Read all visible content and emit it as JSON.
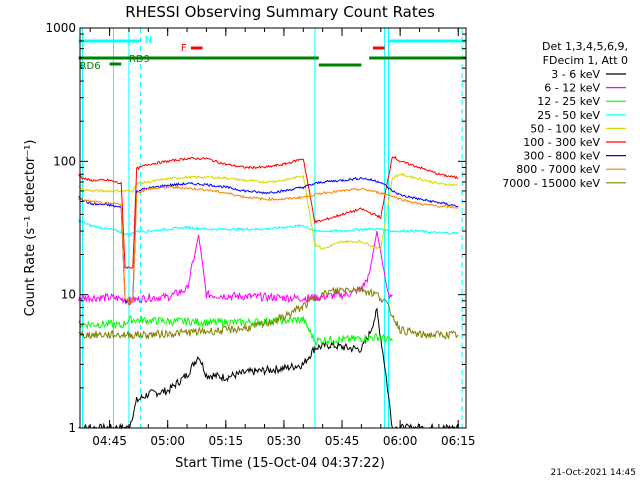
{
  "chart_data": {
    "type": "line",
    "title": "RHESSI Observing Summary Count Rates",
    "xlabel": "Start Time (15-Oct-04 04:37:22)",
    "ylabel": "Count Rate (s⁻¹ detector⁻¹)",
    "yscale": "log",
    "ylim": [
      1,
      1000
    ],
    "xlim": [
      "04:37:22",
      "06:17:00"
    ],
    "x_ticks": [
      "04:45",
      "05:00",
      "05:15",
      "05:30",
      "05:45",
      "06:00",
      "06:15"
    ],
    "y_ticks": [
      "1",
      "10",
      "100",
      "1000"
    ],
    "legend_header": [
      "Det 1,3,4,5,6,9,",
      "FDecim 1, Att 0"
    ],
    "legend_position": "right",
    "footer": "21-Oct-2021 14:45",
    "series": [
      {
        "name": "3 - 6 keV",
        "color": "#000000",
        "x": [
          "04:37",
          "04:46",
          "04:48",
          "04:50",
          "04:52",
          "04:55",
          "05:00",
          "05:05",
          "05:08",
          "05:10",
          "05:15",
          "05:20",
          "05:25",
          "05:30",
          "05:35",
          "05:38",
          "05:42",
          "05:46",
          "05:50",
          "05:52",
          "05:54",
          "05:56",
          "05:58",
          "06:00",
          "06:05",
          "06:10",
          "06:15"
        ],
        "values": [
          1.0,
          1.0,
          1.0,
          1.0,
          1.6,
          1.8,
          1.9,
          2.5,
          3.5,
          2.5,
          2.4,
          2.6,
          2.7,
          2.8,
          3.0,
          4.0,
          4.2,
          4.0,
          3.9,
          5.0,
          7.5,
          3.0,
          1.0,
          1.0,
          1.0,
          1.0,
          1.0
        ]
      },
      {
        "name": "6 - 12 keV",
        "color": "#ff00ff",
        "x": [
          "04:37",
          "04:46",
          "04:48",
          "04:50",
          "04:55",
          "05:00",
          "05:05",
          "05:07",
          "05:08",
          "05:10",
          "05:15",
          "05:20",
          "05:25",
          "05:30",
          "05:35",
          "05:38",
          "05:42",
          "05:46",
          "05:50",
          "05:52",
          "05:54",
          "05:56",
          "05:57",
          "05:58"
        ],
        "values": [
          9.5,
          9.5,
          9.3,
          9.0,
          9.5,
          9.6,
          11,
          20,
          28,
          10,
          9.8,
          9.7,
          9.6,
          9.5,
          9.4,
          9.5,
          9.8,
          10,
          11,
          14,
          30,
          14,
          10,
          10
        ]
      },
      {
        "name": "12 - 25 keV",
        "color": "#00ff00",
        "x": [
          "04:37",
          "04:46",
          "04:48",
          "04:50",
          "04:55",
          "05:00",
          "05:05",
          "05:10",
          "05:15",
          "05:20",
          "05:25",
          "05:30",
          "05:35",
          "05:38",
          "05:42",
          "05:46",
          "05:50",
          "05:54",
          "05:56",
          "05:58"
        ],
        "values": [
          6.0,
          6.0,
          5.8,
          6.5,
          6.4,
          6.3,
          6.3,
          6.2,
          6.2,
          6.2,
          6.3,
          6.4,
          6.5,
          4.5,
          4.6,
          4.6,
          4.7,
          4.8,
          4.7,
          4.5
        ]
      },
      {
        "name": "25 - 50 keV",
        "color": "#00ffff",
        "x": [
          "04:37",
          "04:40",
          "04:45",
          "04:47",
          "04:50",
          "04:52",
          "04:55",
          "05:00",
          "05:05",
          "05:10",
          "05:15",
          "05:20",
          "05:25",
          "05:30",
          "05:35",
          "05:38",
          "05:40",
          "05:45",
          "05:50",
          "05:55",
          "05:58",
          "06:00",
          "06:05",
          "06:10",
          "06:15"
        ],
        "values": [
          36,
          33,
          31,
          30,
          28,
          30,
          30,
          31,
          32,
          31,
          31,
          31,
          31,
          32,
          33,
          30,
          30,
          30,
          31,
          31,
          30,
          30,
          30,
          29,
          29
        ]
      },
      {
        "name": "50 - 100 keV",
        "color": "#d7d700",
        "x": [
          "04:37",
          "04:38",
          "04:40",
          "04:45",
          "04:48",
          "04:51",
          "04:52",
          "04:55",
          "05:00",
          "05:05",
          "05:10",
          "05:15",
          "05:20",
          "05:25",
          "05:30",
          "05:35",
          "05:38",
          "05:40",
          "05:45",
          "05:50",
          "05:55",
          "05:58",
          "06:00",
          "06:05",
          "06:10",
          "06:15"
        ],
        "values": [
          65,
          62,
          60,
          60,
          60,
          60,
          68,
          70,
          74,
          76,
          76,
          75,
          72,
          70,
          72,
          78,
          24,
          22,
          25,
          25,
          22,
          75,
          80,
          74,
          68,
          66
        ]
      },
      {
        "name": "100 - 300 keV",
        "color": "#ff0000",
        "x": [
          "04:37",
          "04:38",
          "04:40",
          "04:45",
          "04:48",
          "04:49",
          "04:51",
          "04:52",
          "04:55",
          "05:00",
          "05:05",
          "05:10",
          "05:15",
          "05:20",
          "05:25",
          "05:30",
          "05:35",
          "05:38",
          "05:40",
          "05:45",
          "05:50",
          "05:55",
          "05:58",
          "06:00",
          "06:05",
          "06:10",
          "06:15"
        ],
        "values": [
          80,
          75,
          72,
          72,
          68,
          16,
          16,
          88,
          95,
          100,
          105,
          105,
          95,
          90,
          90,
          95,
          105,
          35,
          36,
          40,
          44,
          38,
          110,
          100,
          90,
          80,
          75
        ]
      },
      {
        "name": "300 - 800 keV",
        "color": "#0000ff",
        "x": [
          "04:37",
          "04:38",
          "04:40",
          "04:45",
          "04:48",
          "04:49",
          "04:51",
          "04:52",
          "04:55",
          "05:00",
          "05:05",
          "05:10",
          "05:15",
          "05:20",
          "05:25",
          "05:30",
          "05:35",
          "05:38",
          "05:40",
          "05:45",
          "05:50",
          "05:55",
          "05:58",
          "06:00",
          "06:05",
          "06:10",
          "06:15"
        ],
        "values": [
          55,
          52,
          48,
          47,
          45,
          9,
          9,
          60,
          63,
          66,
          68,
          67,
          64,
          60,
          58,
          60,
          64,
          68,
          70,
          72,
          75,
          70,
          60,
          56,
          52,
          49,
          46
        ]
      },
      {
        "name": "800 - 7000 keV",
        "color": "#ff8000",
        "x": [
          "04:37",
          "04:40",
          "04:45",
          "04:48",
          "04:49",
          "04:51",
          "04:52",
          "04:55",
          "05:00",
          "05:05",
          "05:10",
          "05:15",
          "05:20",
          "05:25",
          "05:30",
          "05:35",
          "05:38",
          "05:40",
          "05:45",
          "05:50",
          "05:55",
          "05:58",
          "06:00",
          "06:05",
          "06:10",
          "06:15"
        ],
        "values": [
          52,
          50,
          48,
          48,
          9,
          9,
          58,
          62,
          64,
          63,
          61,
          58,
          54,
          52,
          52,
          54,
          56,
          58,
          60,
          62,
          58,
          55,
          52,
          48,
          46,
          45
        ]
      },
      {
        "name": "7000 - 15000 keV",
        "color": "#808000",
        "x": [
          "04:37",
          "04:45",
          "04:50",
          "04:55",
          "05:00",
          "05:05",
          "05:10",
          "05:15",
          "05:20",
          "05:25",
          "05:30",
          "05:35",
          "05:38",
          "05:42",
          "05:46",
          "05:50",
          "05:54",
          "05:56",
          "05:58",
          "06:00",
          "06:05",
          "06:10",
          "06:15"
        ],
        "values": [
          5.0,
          5.0,
          5.0,
          5.0,
          5.1,
          5.2,
          5.3,
          5.4,
          5.6,
          6.0,
          6.8,
          8.2,
          9.5,
          10.5,
          11,
          11,
          10,
          9.0,
          7.0,
          5.5,
          5.0,
          5.0,
          5.0
        ]
      }
    ],
    "annotations": [
      {
        "label": "N",
        "color": "#00ffff",
        "x": [
          "04:37",
          "04:53"
        ]
      },
      {
        "label": "",
        "color": "#00ffff",
        "x": [
          "05:57",
          "06:17"
        ]
      },
      {
        "label": "F",
        "color": "#ff0000",
        "x": [
          "05:06",
          "05:09"
        ]
      },
      {
        "label": "",
        "color": "#ff0000",
        "x": [
          "05:53",
          "05:56"
        ]
      },
      {
        "label": "RD9",
        "color": "#008000",
        "x": [
          "04:37",
          "05:39"
        ]
      },
      {
        "label": "RD6",
        "color": "#008000",
        "x": [
          "04:45",
          "04:48"
        ]
      },
      {
        "label": "",
        "color": "#008000",
        "x": [
          "05:39",
          "05:50"
        ]
      },
      {
        "label": "",
        "color": "#008000",
        "x": [
          "05:52",
          "06:17"
        ]
      }
    ],
    "vlines_solid": [
      "04:38",
      "04:46",
      "04:50",
      "05:38",
      "05:56",
      "05:57"
    ],
    "vlines_dashed": [
      "04:53",
      "05:57",
      "06:16"
    ]
  }
}
